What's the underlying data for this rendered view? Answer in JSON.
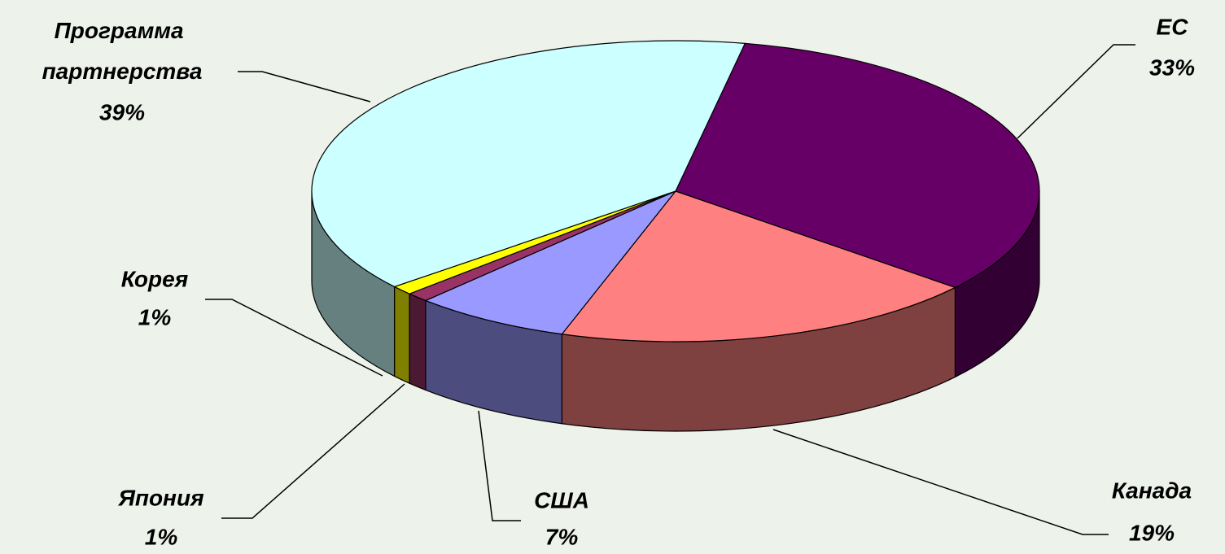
{
  "chart_data": {
    "type": "pie",
    "categories": [
      "ЕС",
      "Канада",
      "США",
      "Япония",
      "Корея",
      "Программа партнерства"
    ],
    "values": [
      33,
      19,
      7,
      1,
      1,
      39
    ],
    "value_labels": [
      "33%",
      "19%",
      "7%",
      "1%",
      "1%",
      "39%"
    ],
    "colors": [
      "#660066",
      "#ff8080",
      "#9999ff",
      "#993366",
      "#ffff00",
      "#ccffff"
    ]
  }
}
